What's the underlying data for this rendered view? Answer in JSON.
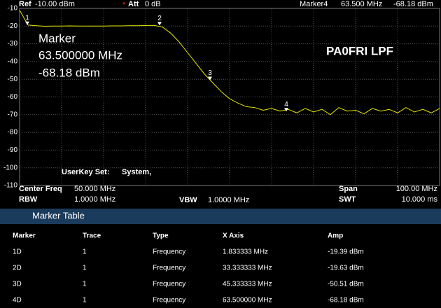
{
  "header": {
    "ref_label": "Ref",
    "ref_value": "-10.00 dBm",
    "att_star": "*",
    "att_label": "Att",
    "att_value": "0 dB",
    "marker_label": "Marker4",
    "marker_freq": "63.500 MHz",
    "marker_amp": "-68.18 dBm"
  },
  "chart_data": {
    "type": "line",
    "annotations": {
      "marker_title": "Marker",
      "marker_freq": "63.500000 MHz",
      "marker_amp": "-68.18 dBm",
      "label": "PA0FRI LPF",
      "userkey": "UserKey Set:",
      "userkey_value": "System,"
    },
    "x": [
      0,
      2,
      4,
      6,
      8,
      10,
      12,
      14,
      16,
      18,
      20,
      22,
      24,
      26,
      28,
      30,
      32,
      34,
      36,
      38,
      40,
      42,
      44,
      46,
      48,
      50,
      52,
      54,
      56,
      58,
      60,
      62,
      64,
      66,
      68,
      70,
      72,
      74,
      76,
      78,
      80,
      82,
      84,
      86,
      88,
      90,
      92,
      94,
      96,
      98,
      100
    ],
    "series": [
      {
        "color": "#e6e600",
        "values": [
          -11,
          -19.4,
          -19.8,
          -20.1,
          -20,
          -20,
          -19.9,
          -20,
          -20,
          -20,
          -20,
          -19.9,
          -19.9,
          -19.8,
          -19.8,
          -19.7,
          -19.6,
          -20.5,
          -24,
          -29,
          -35,
          -41,
          -47,
          -52,
          -57,
          -61,
          -63.5,
          -65.5,
          -66,
          -67.5,
          -66.5,
          -68,
          -67,
          -69,
          -66.5,
          -68.5,
          -67,
          -70,
          -66,
          -68,
          -67.5,
          -69.5,
          -66.5,
          -68,
          -67,
          -69,
          -66,
          -68.5,
          -67,
          -69,
          -66.5
        ]
      }
    ],
    "markers": [
      {
        "label": "1",
        "x": 1.833333,
        "y": -19.39
      },
      {
        "label": "2",
        "x": 33.333333,
        "y": -19.63
      },
      {
        "label": "3",
        "x": 45.333333,
        "y": -50.51
      },
      {
        "label": "4",
        "x": 63.5,
        "y": -68.18
      }
    ],
    "xlim": [
      0,
      100
    ],
    "ylim": [
      -110,
      -10
    ],
    "yticks": [
      -10,
      -20,
      -30,
      -40,
      -50,
      -60,
      -70,
      -80,
      -90,
      -100,
      -110
    ],
    "grid": true
  },
  "settings": {
    "center_label": "Center Freq",
    "center_value": "50.000 MHz",
    "rbw_label": "RBW",
    "rbw_value": "1.0000 MHz",
    "vbw_label": "VBW",
    "vbw_value": "1.0000 MHz",
    "span_label": "Span",
    "span_value": "100.00 MHz",
    "swt_label": "SWT",
    "swt_value": "10.000 ms"
  },
  "marker_table": {
    "title": "Marker Table",
    "columns": [
      "Marker",
      "Trace",
      "Type",
      "X Axis",
      "Amp"
    ],
    "rows": [
      [
        "1D",
        "1",
        "Frequency",
        "1.833333 MHz",
        "-19.39 dBm"
      ],
      [
        "2D",
        "1",
        "Frequency",
        "33.333333 MHz",
        "-19.63 dBm"
      ],
      [
        "3D",
        "1",
        "Frequency",
        "45.333333 MHz",
        "-50.51 dBm"
      ],
      [
        "4D",
        "1",
        "Frequency",
        "63.500000 MHz",
        "-68.18 dBm"
      ]
    ]
  }
}
